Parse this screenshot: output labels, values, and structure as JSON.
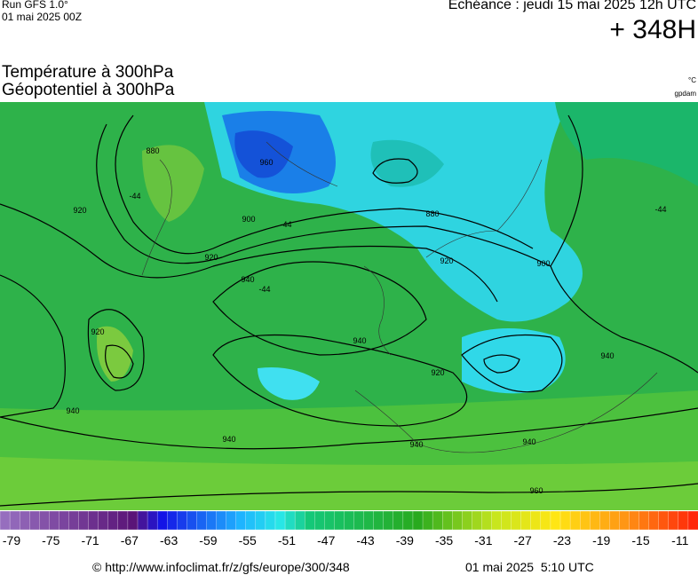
{
  "header": {
    "run": "Run GFS 1.0°",
    "run_date": "01 mai 2025 00Z",
    "echeance": "Echéance : jeudi 15 mai 2025 12h UTC",
    "lead": "+ 348H",
    "title_temp": "Température à 300hPa",
    "title_geo": "Géopotentiel à 300hPa",
    "unit_temp": "°C",
    "unit_geo": "gpdam"
  },
  "map": {
    "contour_labels": [
      880,
      960,
      900,
      880,
      920,
      920,
      940,
      -44,
      -44,
      940,
      920,
      900,
      -44,
      920,
      940,
      940,
      940,
      940,
      960,
      -44,
      920,
      940
    ]
  },
  "scale": {
    "ticks": [
      -79,
      -75,
      -71,
      -67,
      -63,
      -59,
      -55,
      -51,
      -47,
      -43,
      -39,
      -35,
      -31,
      -27,
      -23,
      -19,
      -15,
      -11
    ]
  },
  "footer": {
    "url": "© http://www.infoclimat.fr/z/gfs/europe/300/348",
    "generated": "01 mai 2025  5:10 UTC"
  }
}
